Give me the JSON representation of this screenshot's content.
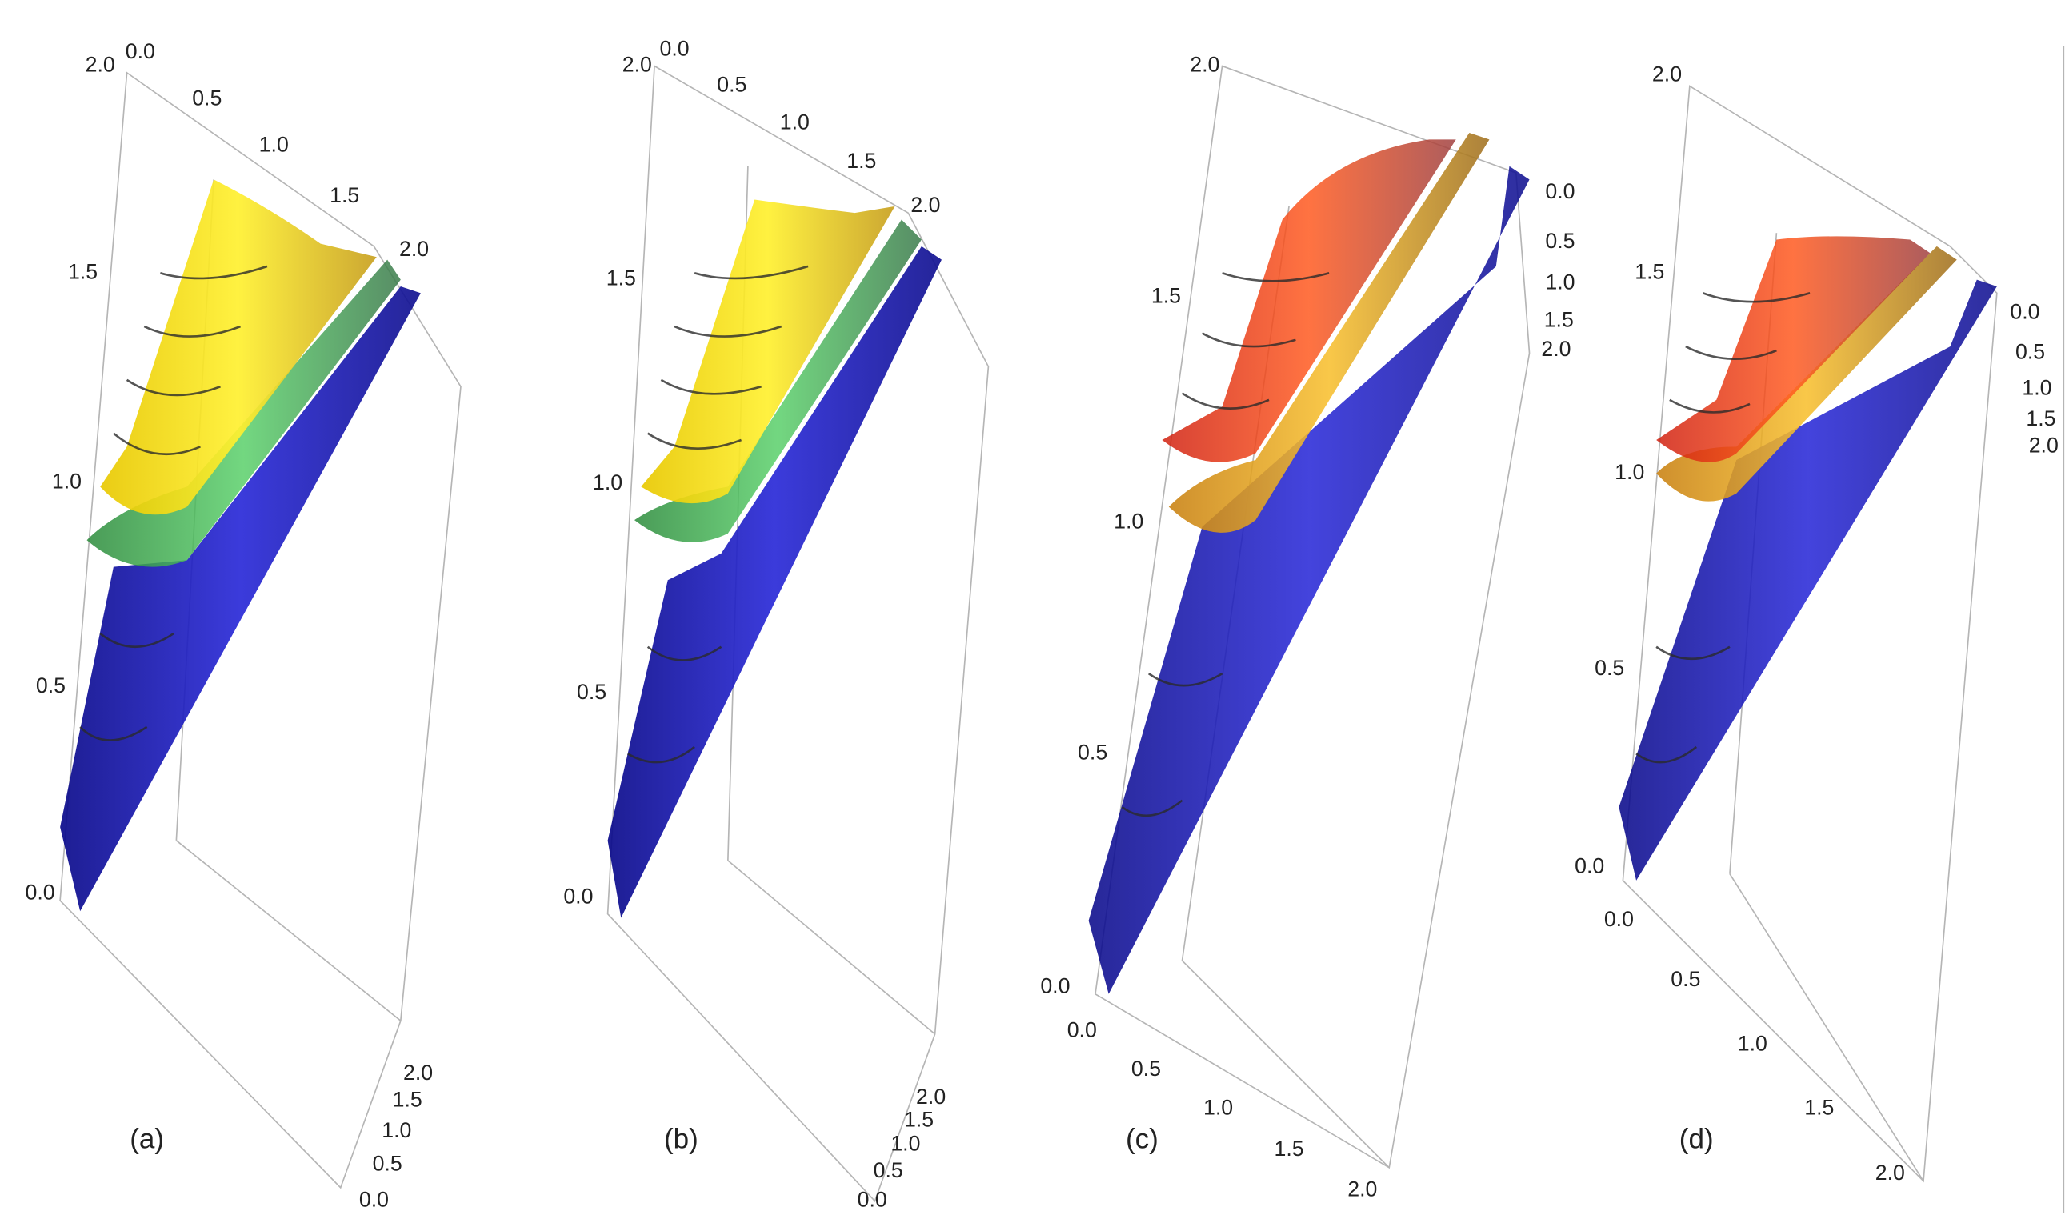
{
  "panels": [
    {
      "label": "(a)",
      "vertical_ticks": [
        "0.0",
        "0.5",
        "1.0",
        "1.5",
        "2.0"
      ],
      "top_ticks": [
        "0.0",
        "0.5",
        "1.0",
        "1.5",
        "2.0"
      ],
      "side_ticks": [
        "0.0",
        "0.5",
        "1.0",
        "1.5",
        "2.0"
      ]
    },
    {
      "label": "(b)",
      "vertical_ticks": [
        "0.0",
        "0.5",
        "1.0",
        "1.5",
        "2.0"
      ],
      "top_ticks": [
        "0.0",
        "0.5",
        "1.0",
        "1.5",
        "2.0"
      ],
      "side_ticks": [
        "0.0",
        "0.5",
        "1.0",
        "1.5",
        "2.0"
      ]
    },
    {
      "label": "(c)",
      "vertical_ticks": [
        "0.0",
        "0.5",
        "1.0",
        "1.5",
        "2.0"
      ],
      "top_ticks": [
        "0.0",
        "0.5",
        "1.0",
        "1.5",
        "2.0"
      ],
      "side_ticks": [
        "0.0",
        "0.5",
        "1.0",
        "1.5",
        "2.0"
      ]
    },
    {
      "label": "(d)",
      "vertical_ticks": [
        "0.0",
        "0.5",
        "1.0",
        "1.5",
        "2.0"
      ],
      "top_ticks": [
        "0.0",
        "0.5",
        "1.0",
        "1.5",
        "2.0"
      ],
      "side_ticks": [
        "0.0",
        "0.5",
        "1.0",
        "1.5",
        "2.0"
      ]
    }
  ]
}
